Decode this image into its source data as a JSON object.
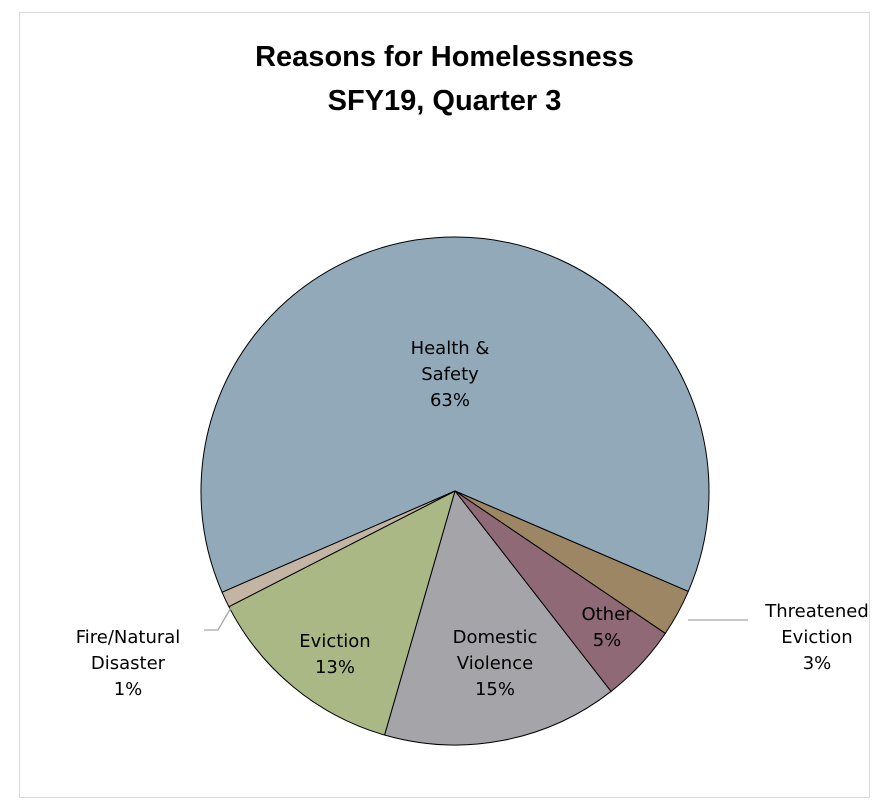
{
  "chart_data": {
    "type": "pie",
    "title": "Reasons for Homelessness",
    "subtitle": "SFY19, Quarter 3",
    "start_direction": "clockwise",
    "slices": [
      {
        "label": "Health & Safety",
        "label_lines": [
          "Health &",
          "Safety"
        ],
        "value": 63,
        "value_label": "63%",
        "color": "#92a9b9",
        "leader_line": false
      },
      {
        "label": "Threatened Eviction",
        "label_lines": [
          "Threatened",
          "Eviction"
        ],
        "value": 3,
        "value_label": "3%",
        "color": "#9c8664",
        "leader_line": true
      },
      {
        "label": "Other",
        "label_lines": [
          "Other"
        ],
        "value": 5,
        "value_label": "5%",
        "color": "#8f6a76",
        "leader_line": false
      },
      {
        "label": "Domestic Violence",
        "label_lines": [
          "Domestic",
          "Violence"
        ],
        "value": 15,
        "value_label": "15%",
        "color": "#a5a4a8",
        "leader_line": false
      },
      {
        "label": "Eviction",
        "label_lines": [
          "Eviction"
        ],
        "value": 13,
        "value_label": "13%",
        "color": "#aab886",
        "leader_line": false
      },
      {
        "label": "Fire/Natural Disaster",
        "label_lines": [
          "Fire/Natural",
          "Disaster"
        ],
        "value": 1,
        "value_label": "1%",
        "color": "#c3b4a3",
        "leader_line": true
      }
    ],
    "legend": "none"
  }
}
